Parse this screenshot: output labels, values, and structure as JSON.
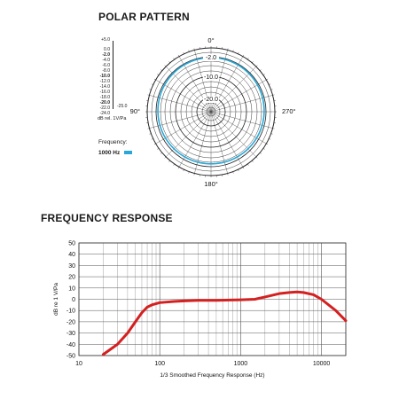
{
  "polar": {
    "title": "POLAR PATTERN",
    "angle_labels": [
      "0°",
      "90°",
      "180°",
      "270°"
    ],
    "ring_labels": [
      "-2.0",
      "-10.0",
      "-20.0"
    ],
    "scale_labels": [
      "+5.0",
      "0.0",
      "-2.0",
      "-4.0",
      "-6.0",
      "-8.0",
      "-10.0",
      "-12.0",
      "-14.0",
      "-16.0",
      "-18.0",
      "-20.0",
      "-22.0",
      "-24.0"
    ],
    "scale_bottom_right": "-25.0",
    "scale_unit": "dB rel. 1V/Pa",
    "frequency_label": "Frequency:",
    "frequency_value": "1000 Hz",
    "pattern_color": "#29a8d8"
  },
  "frequency": {
    "title": "FREQUENCY RESPONSE"
  },
  "chart_data": {
    "type": "line",
    "title": "FREQUENCY RESPONSE",
    "xlabel": "1/3 Smoothed Frequency Response (Hz)",
    "ylabel": "dB re 1 V/Pa",
    "xscale": "log",
    "xlim": [
      10,
      20000
    ],
    "ylim": [
      -50,
      50
    ],
    "x_ticks": [
      10,
      100,
      1000,
      10000
    ],
    "x_tick_labels": [
      "10",
      "100",
      "1000",
      "10000"
    ],
    "y_ticks": [
      50,
      40,
      30,
      20,
      10,
      0,
      -10,
      -20,
      -30,
      -40,
      -50
    ],
    "grid": true,
    "series": [
      {
        "color": "#d42020",
        "x": [
          20,
          30,
          40,
          50,
          60,
          70,
          80,
          100,
          150,
          200,
          300,
          500,
          1000,
          1500,
          2000,
          3000,
          4000,
          5000,
          6000,
          8000,
          10000,
          15000,
          20000
        ],
        "y": [
          -49,
          -40,
          -30,
          -20,
          -12,
          -7,
          -5,
          -3,
          -2,
          -1.5,
          -1,
          -1,
          -0.5,
          0,
          2,
          5,
          6,
          6.5,
          6,
          4,
          0,
          -10,
          -19
        ]
      }
    ]
  }
}
